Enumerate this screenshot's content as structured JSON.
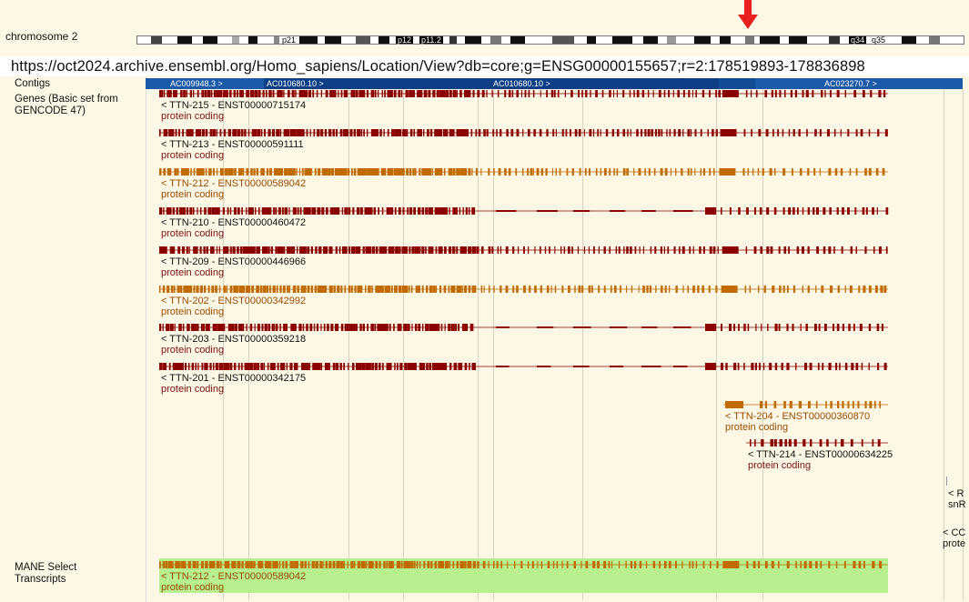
{
  "chromosome": {
    "label": "chromosome 2",
    "bands": [
      "p21",
      "p12",
      "p11.2",
      "q34",
      "q35"
    ],
    "marker_color": "#e82020"
  },
  "url": "https://oct2024.archive.ensembl.org/Homo_sapiens/Location/View?db=core;g=ENSG00000155657;r=2:178519893-178836898",
  "tracks": {
    "contigs_label": "Contigs",
    "genes_label_line1": "Genes (Basic set from",
    "genes_label_line2": "GENCODE 47)",
    "mane_label_line1": "MANE Select",
    "mane_label_line2": "Transcripts"
  },
  "contigs": [
    "AC009948.3 >",
    "AC010680.10 >",
    "AC010680.10 >",
    "AC023270.7 >"
  ],
  "colors": {
    "dark_red": "#8b0000",
    "orange": "#c06a00",
    "contig_blue": "#1a5aa8",
    "mane_green": "#b8f090"
  },
  "transcripts": [
    {
      "label": "< TTN-215 - ENST00000715174",
      "biotype": "protein coding",
      "color": "dark_red"
    },
    {
      "label": "< TTN-213 - ENST00000591111",
      "biotype": "protein coding",
      "color": "dark_red"
    },
    {
      "label": "< TTN-212 - ENST00000589042",
      "biotype": "protein coding",
      "color": "orange"
    },
    {
      "label": "< TTN-210 - ENST00000460472",
      "biotype": "protein coding",
      "color": "dark_red"
    },
    {
      "label": "< TTN-209 - ENST00000446966",
      "biotype": "protein coding",
      "color": "dark_red"
    },
    {
      "label": "< TTN-202 - ENST00000342992",
      "biotype": "protein coding",
      "color": "orange"
    },
    {
      "label": "< TTN-203 - ENST00000359218",
      "biotype": "protein coding",
      "color": "dark_red"
    },
    {
      "label": "< TTN-201 - ENST00000342175",
      "biotype": "protein coding",
      "color": "dark_red"
    },
    {
      "label": "< TTN-204 - ENST00000360870",
      "biotype": "protein coding",
      "color": "orange"
    },
    {
      "label": "< TTN-214 - ENST00000634225",
      "biotype": "protein coding",
      "color": "dark_red"
    }
  ],
  "mane": {
    "label": "< TTN-212 - ENST00000589042",
    "biotype": "protein coding"
  },
  "edge_fragments": [
    "< R",
    "snR",
    "< CC",
    "prote"
  ]
}
